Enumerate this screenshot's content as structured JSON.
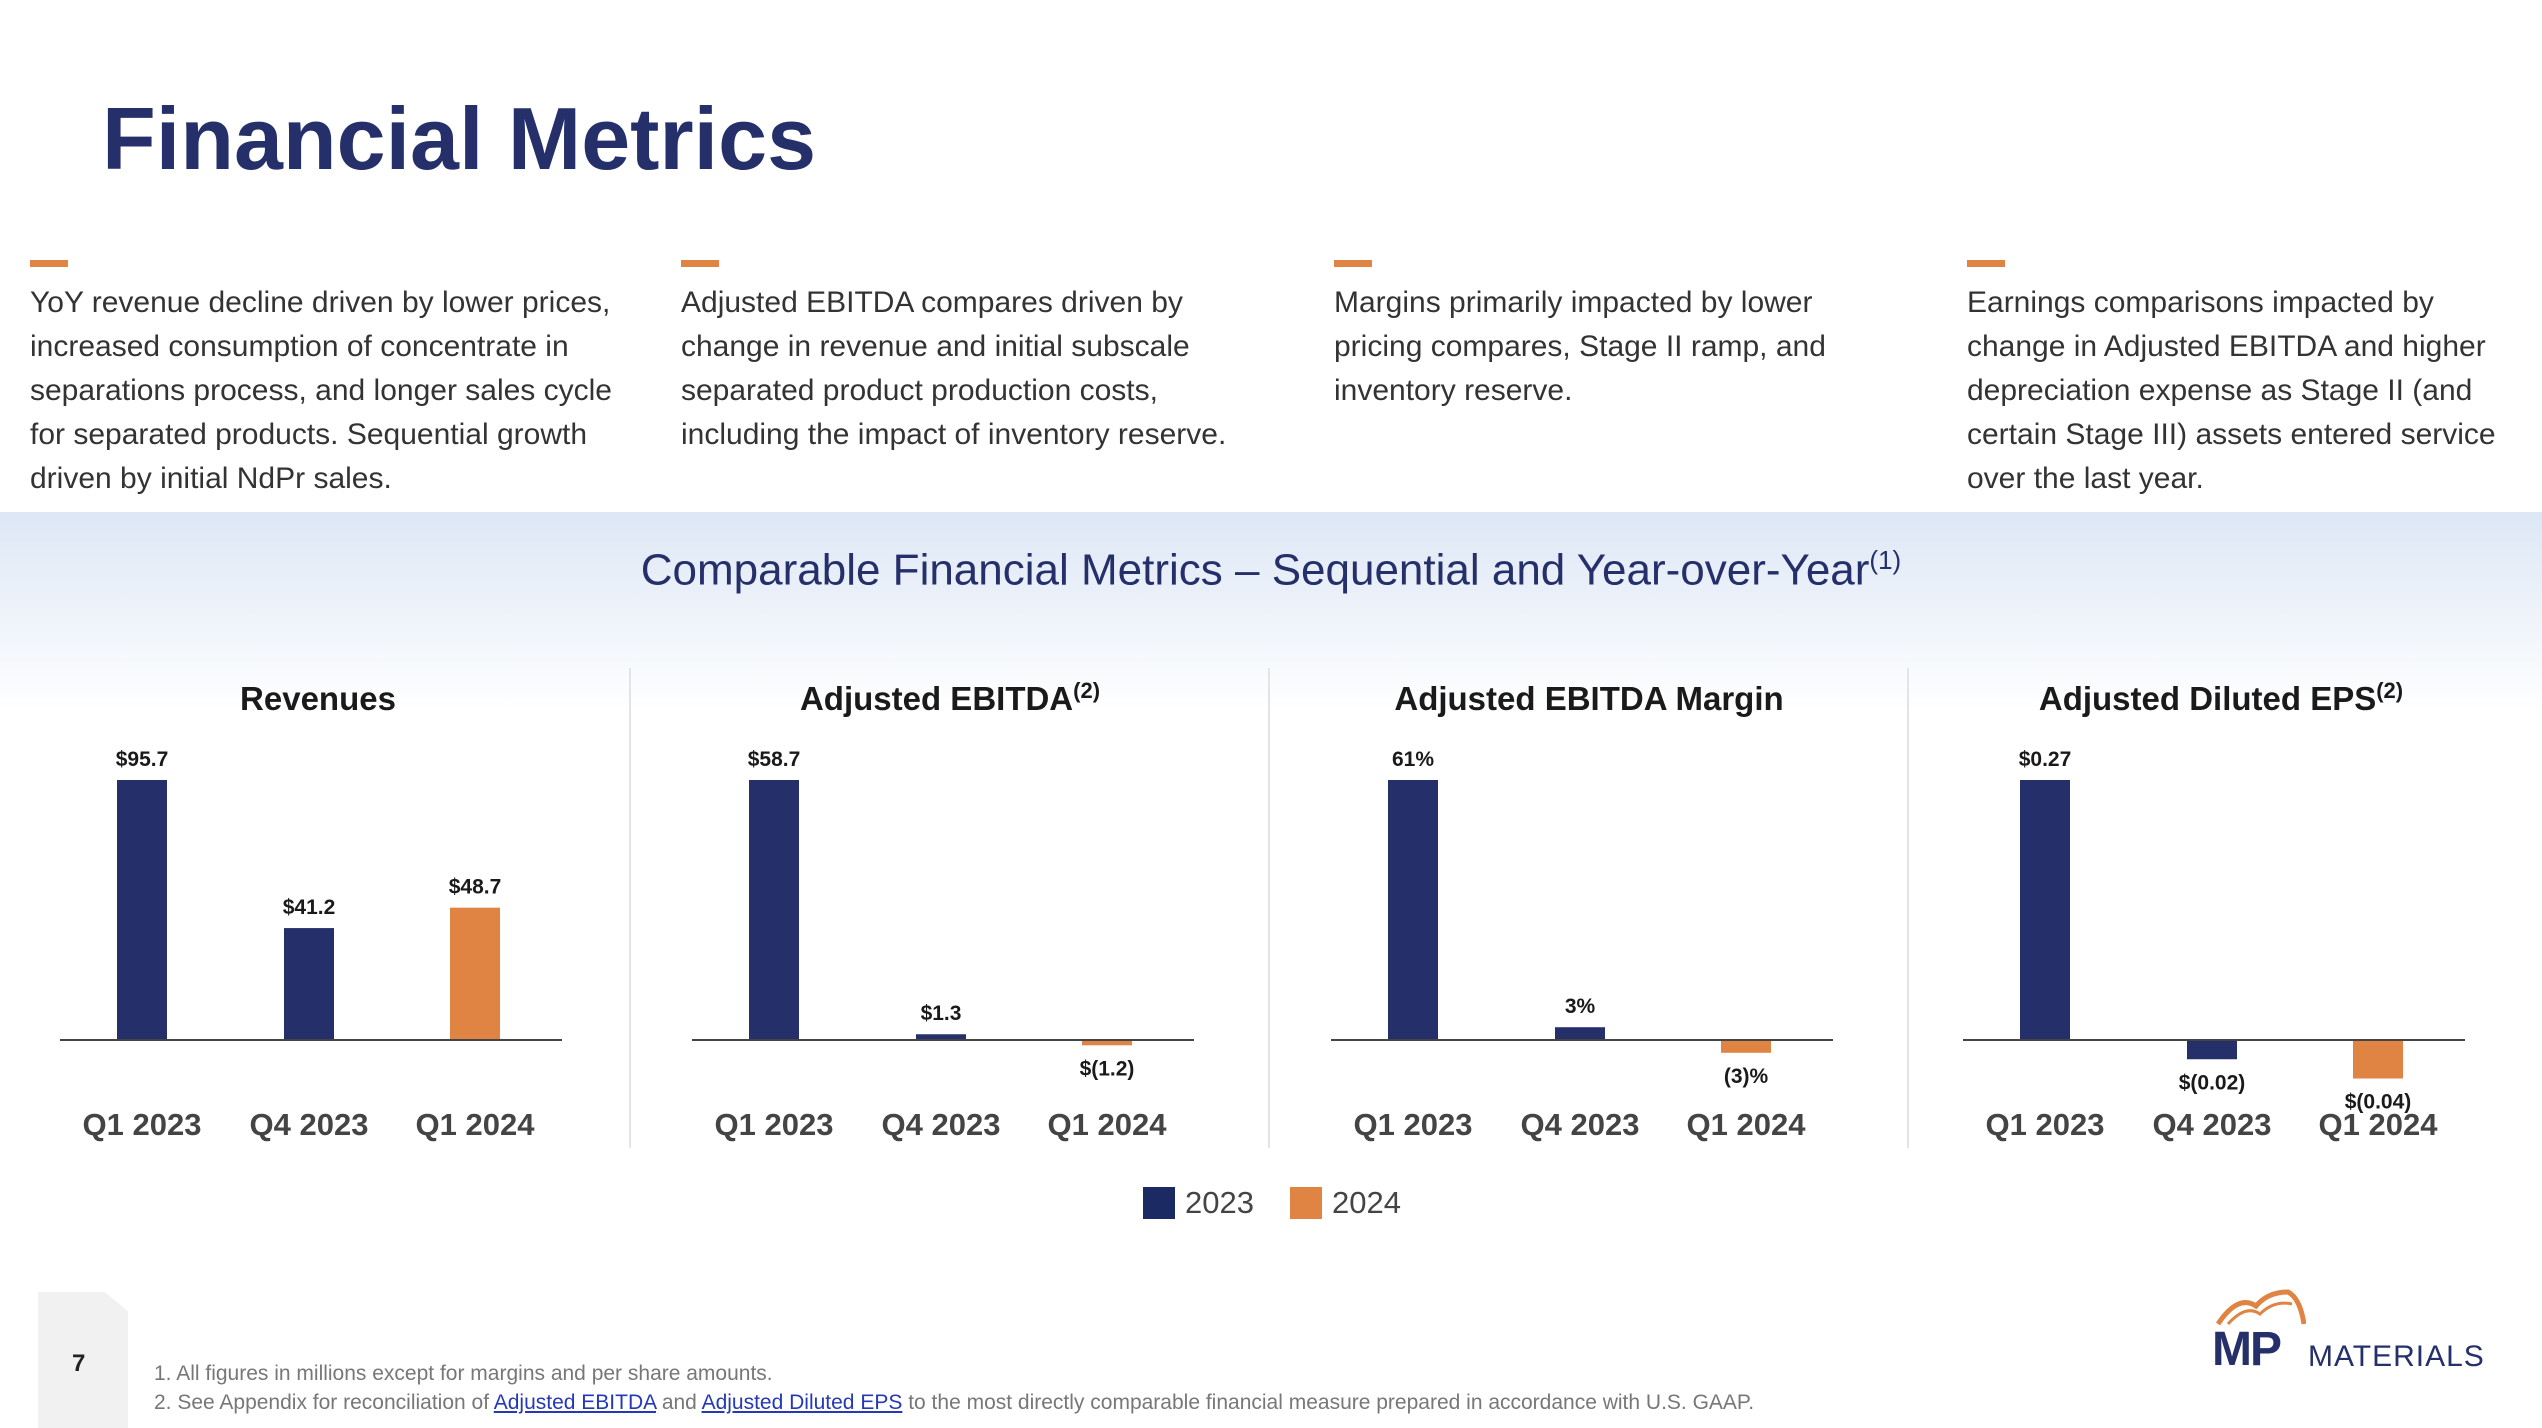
{
  "page": {
    "title": "Financial Metrics",
    "number": "7"
  },
  "callouts": [
    "YoY revenue decline driven by lower prices, increased consumption of concentrate in separations process, and longer sales cycle for separated products. Sequential growth driven by initial NdPr sales.",
    "Adjusted EBITDA compares driven by change in revenue and initial subscale separated product production costs, including the impact of  inventory reserve.",
    "Margins primarily impacted by lower pricing compares, Stage II ramp, and inventory reserve.",
    "Earnings comparisons impacted by change in Adjusted EBITDA and higher depreciation expense as Stage II (and certain Stage III) assets entered service over the last year."
  ],
  "section": {
    "subtitle": "Comparable Financial Metrics – Sequential and Year-over-Year",
    "subtitle_sup": "(1)"
  },
  "colors": {
    "series_2023": "#25306b",
    "series_2024": "#df8442",
    "accent": "#df8442",
    "title": "#25306b"
  },
  "legend": [
    {
      "label": "2023",
      "color": "#1b2a63"
    },
    {
      "label": "2024",
      "color": "#df8442"
    }
  ],
  "chart_data": [
    {
      "type": "bar",
      "title": "Revenues",
      "title_sup": "",
      "categories": [
        "Q1 2023",
        "Q4 2023",
        "Q1 2024"
      ],
      "values": [
        95.7,
        41.2,
        48.7
      ],
      "labels": [
        "$95.7",
        "$41.2",
        "$48.7"
      ],
      "series_year": [
        "2023",
        "2023",
        "2024"
      ],
      "ylim": [
        0,
        95.7
      ]
    },
    {
      "type": "bar",
      "title": "Adjusted EBITDA",
      "title_sup": "(2)",
      "categories": [
        "Q1 2023",
        "Q4 2023",
        "Q1 2024"
      ],
      "values": [
        58.7,
        1.3,
        -1.2
      ],
      "labels": [
        "$58.7",
        "$1.3",
        "$(1.2)"
      ],
      "series_year": [
        "2023",
        "2023",
        "2024"
      ],
      "ylim": [
        -1.2,
        58.7
      ]
    },
    {
      "type": "bar",
      "title": "Adjusted EBITDA Margin",
      "title_sup": "",
      "categories": [
        "Q1 2023",
        "Q4 2023",
        "Q1 2024"
      ],
      "values": [
        61,
        3,
        -3
      ],
      "labels": [
        "61%",
        "3%",
        "(3)%"
      ],
      "series_year": [
        "2023",
        "2023",
        "2024"
      ],
      "ylim": [
        -3,
        61
      ]
    },
    {
      "type": "bar",
      "title": "Adjusted Diluted EPS",
      "title_sup": "(2)",
      "categories": [
        "Q1 2023",
        "Q4 2023",
        "Q1 2024"
      ],
      "values": [
        0.27,
        -0.02,
        -0.04
      ],
      "labels": [
        "$0.27",
        "$(0.02)",
        "$(0.04)"
      ],
      "series_year": [
        "2023",
        "2023",
        "2024"
      ],
      "ylim": [
        -0.04,
        0.27
      ]
    }
  ],
  "footnotes": {
    "line1": "1. All figures in millions except for margins and per share amounts.",
    "line2_pre": "2. See Appendix for reconciliation of",
    "link1": "Adjusted EBITDA",
    "line2_mid": "and",
    "link2": "Adjusted Diluted EPS",
    "line2_post": "to the most directly comparable financial measure prepared in accordance with U.S. GAAP."
  },
  "logo": {
    "mark": "MP",
    "word": "MATERIALS"
  }
}
